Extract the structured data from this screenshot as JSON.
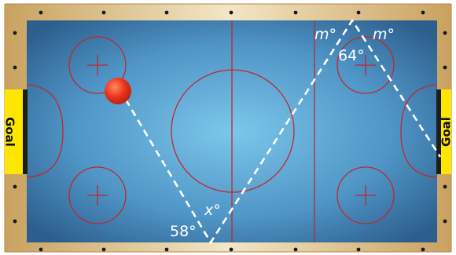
{
  "labels": {
    "goal_left": "Goal",
    "goal_right": "Goal",
    "angle_m_left": "m°",
    "angle_m_right": "m°",
    "angle_64": "64°",
    "angle_x": "x°",
    "angle_58": "58°"
  },
  "colors": {
    "frame": "#cfa96a",
    "ice_center": "#7cc3e8",
    "ice_edge": "#2f6b99",
    "lines": "#c0272d",
    "goal": "#ffe600",
    "puck": "#e8341c",
    "path": "#ffffff"
  }
}
